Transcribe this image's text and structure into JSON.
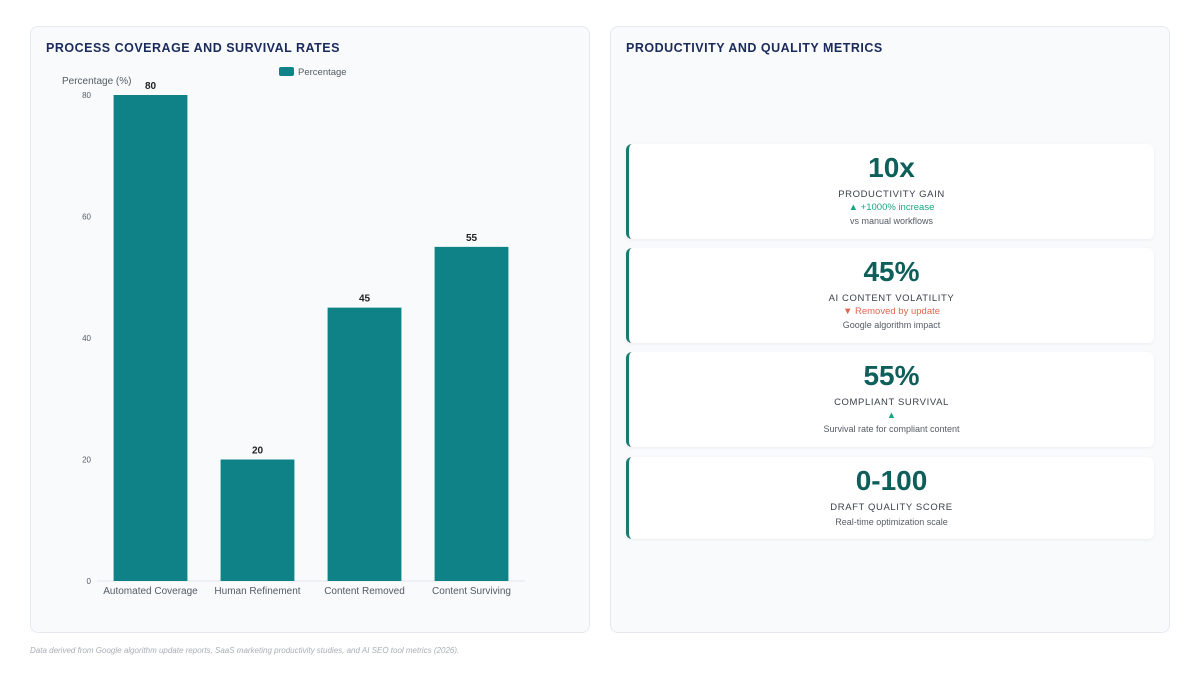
{
  "left_panel": {
    "title": "PROCESS COVERAGE AND SURVIVAL RATES"
  },
  "right_panel": {
    "title": "PRODUCTIVITY AND QUALITY METRICS"
  },
  "colors": {
    "bar": "#0f8288",
    "accent": "#1a7a6f",
    "up": "#17a583",
    "down": "#e0664f"
  },
  "chart_data": {
    "type": "bar",
    "title": "PROCESS COVERAGE AND SURVIVAL RATES",
    "categories": [
      "Automated Coverage",
      "Human Refinement",
      "Content Removed",
      "Content Surviving"
    ],
    "series": [
      {
        "name": "Percentage",
        "values": [
          80,
          20,
          45,
          55
        ]
      }
    ],
    "ylabel": "Percentage (%)",
    "xlabel": "",
    "ylim": [
      0,
      80
    ],
    "yticks": [
      0,
      20,
      40,
      60,
      80
    ],
    "legend": "top",
    "grid": false,
    "data_labels": true
  },
  "metrics": [
    {
      "value": "10x",
      "label": "PRODUCTIVITY GAIN",
      "trend": "▲ +1000% increase",
      "trend_dir": "up",
      "note": "vs manual workflows"
    },
    {
      "value": "45%",
      "label": "AI CONTENT VOLATILITY",
      "trend": "▼ Removed by update",
      "trend_dir": "down",
      "note": "Google algorithm impact"
    },
    {
      "value": "55%",
      "label": "COMPLIANT SURVIVAL",
      "trend": "▲",
      "trend_dir": "up",
      "note": "Survival rate for compliant content"
    },
    {
      "value": "0-100",
      "label": "DRAFT QUALITY SCORE",
      "trend": "",
      "trend_dir": "",
      "note": "Real-time optimization scale"
    }
  ],
  "footnote": "Data derived from Google algorithm update reports, SaaS marketing productivity studies, and AI SEO tool metrics (2026)."
}
